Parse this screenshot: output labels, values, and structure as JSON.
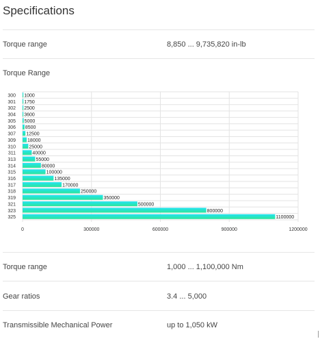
{
  "page": {
    "title": "Specifications"
  },
  "rows": {
    "torque_inlb": {
      "label": "Torque range",
      "value": "8,850 ... 9,735,820 in-lb"
    },
    "chart_heading": {
      "label": "Torque Range"
    },
    "torque_nm": {
      "label": "Torque range",
      "value": "1,000 ... 1,100,000 Nm"
    },
    "gear_ratios": {
      "label": "Gear ratios",
      "value": "3.4 ... 5,000"
    },
    "power": {
      "label": "Transmissible Mechanical Power",
      "value": "up to 1,050 kW"
    }
  },
  "chart_data": {
    "type": "bar",
    "orientation": "horizontal",
    "categories": [
      "300",
      "301",
      "302",
      "304",
      "305",
      "306",
      "307",
      "309",
      "310",
      "311",
      "313",
      "314",
      "315",
      "316",
      "317",
      "318",
      "319",
      "321",
      "323",
      "325"
    ],
    "values": [
      1000,
      1750,
      2500,
      3600,
      5000,
      8500,
      12500,
      18000,
      25000,
      40000,
      55000,
      80000,
      100000,
      135000,
      170000,
      250000,
      350000,
      500000,
      800000,
      1100000
    ],
    "value_labels": [
      "1000",
      "1750",
      "2500",
      "3600",
      "5000",
      "8500",
      "12500",
      "18000",
      "25000",
      "40000",
      "55000",
      "80000",
      "100000",
      "135000",
      "170000",
      "250000",
      "350000",
      "500000",
      "800000",
      "1100000"
    ],
    "x_ticks": [
      0,
      300000,
      600000,
      900000,
      1200000
    ],
    "x_tick_labels": [
      "0",
      "300000",
      "600000",
      "900000",
      "1200000"
    ],
    "xlim": [
      0,
      1200000
    ],
    "grid": true,
    "colors": {
      "start": "#22e3f2",
      "end": "#2ee59a",
      "grid": "#e3e3e3",
      "text": "#222222"
    }
  }
}
